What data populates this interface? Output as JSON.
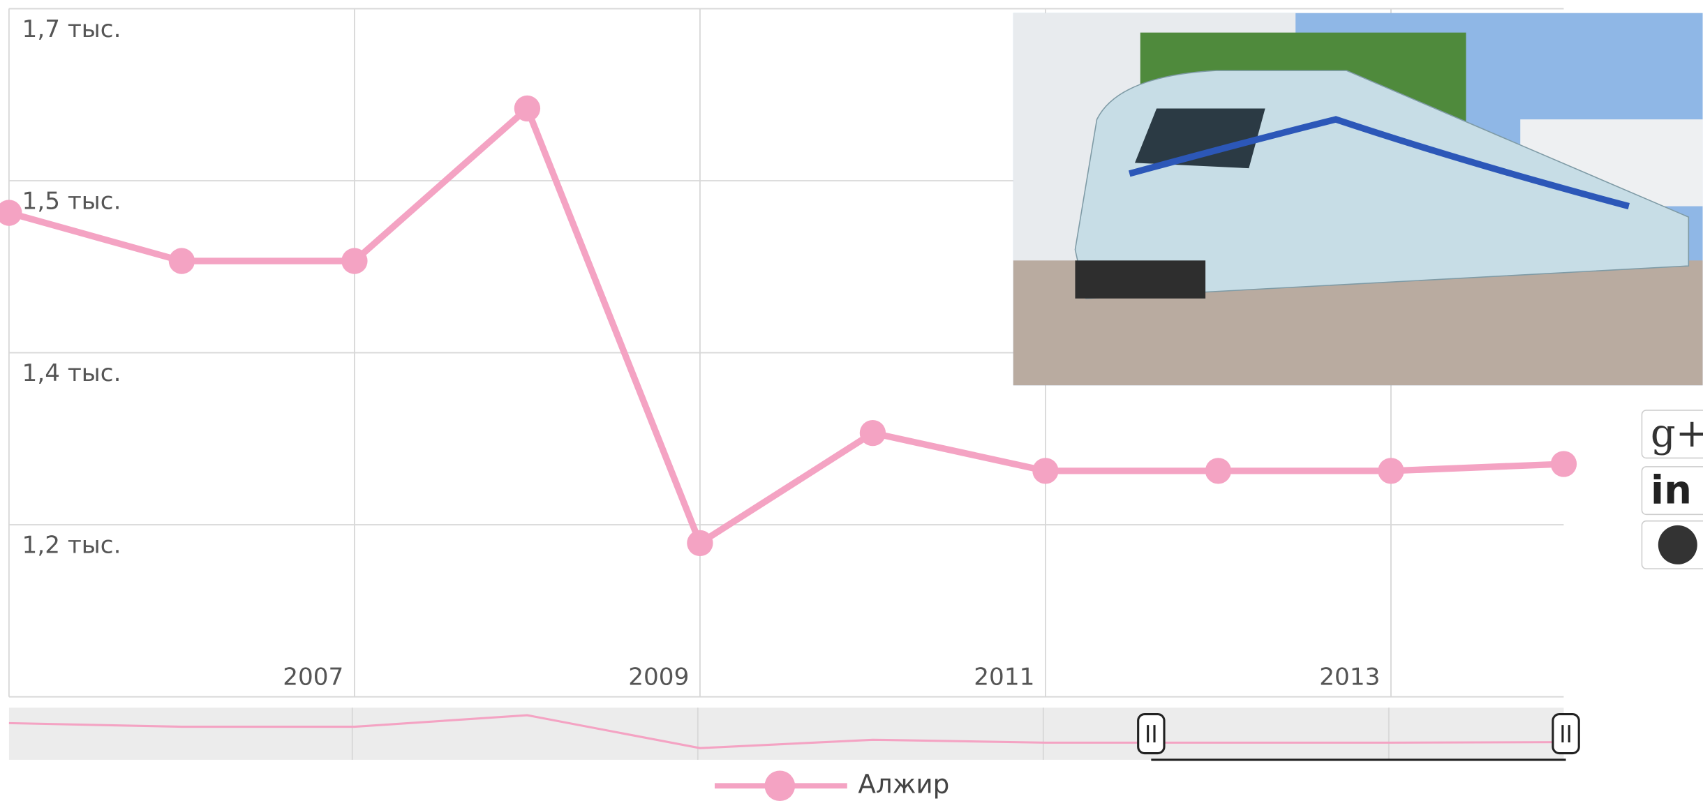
{
  "chart_data": {
    "type": "line",
    "x": [
      2005,
      2006,
      2007,
      2008,
      2009,
      2010,
      2011,
      2012,
      2013,
      2014
    ],
    "series": [
      {
        "name": "Алжир",
        "color": "#f4a3c3",
        "values": [
          1472,
          1430,
          1430,
          1563,
          1184,
          1280,
          1247,
          1247,
          1247,
          1253
        ]
      }
    ],
    "xlim": [
      2005,
      2014
    ],
    "xticks": [
      2007,
      2009,
      2011,
      2013
    ],
    "ylim": [
      1050,
      1650
    ],
    "yticks": [
      {
        "value": 1200,
        "label": "1,2 тыс."
      },
      {
        "value": 1350,
        "label": "1,4 тыс."
      },
      {
        "value": 1500,
        "label": "1,5 тыс."
      },
      {
        "value": 1650,
        "label": "1,7 тыс."
      }
    ],
    "grid": true,
    "legend": "bottom"
  }
}
